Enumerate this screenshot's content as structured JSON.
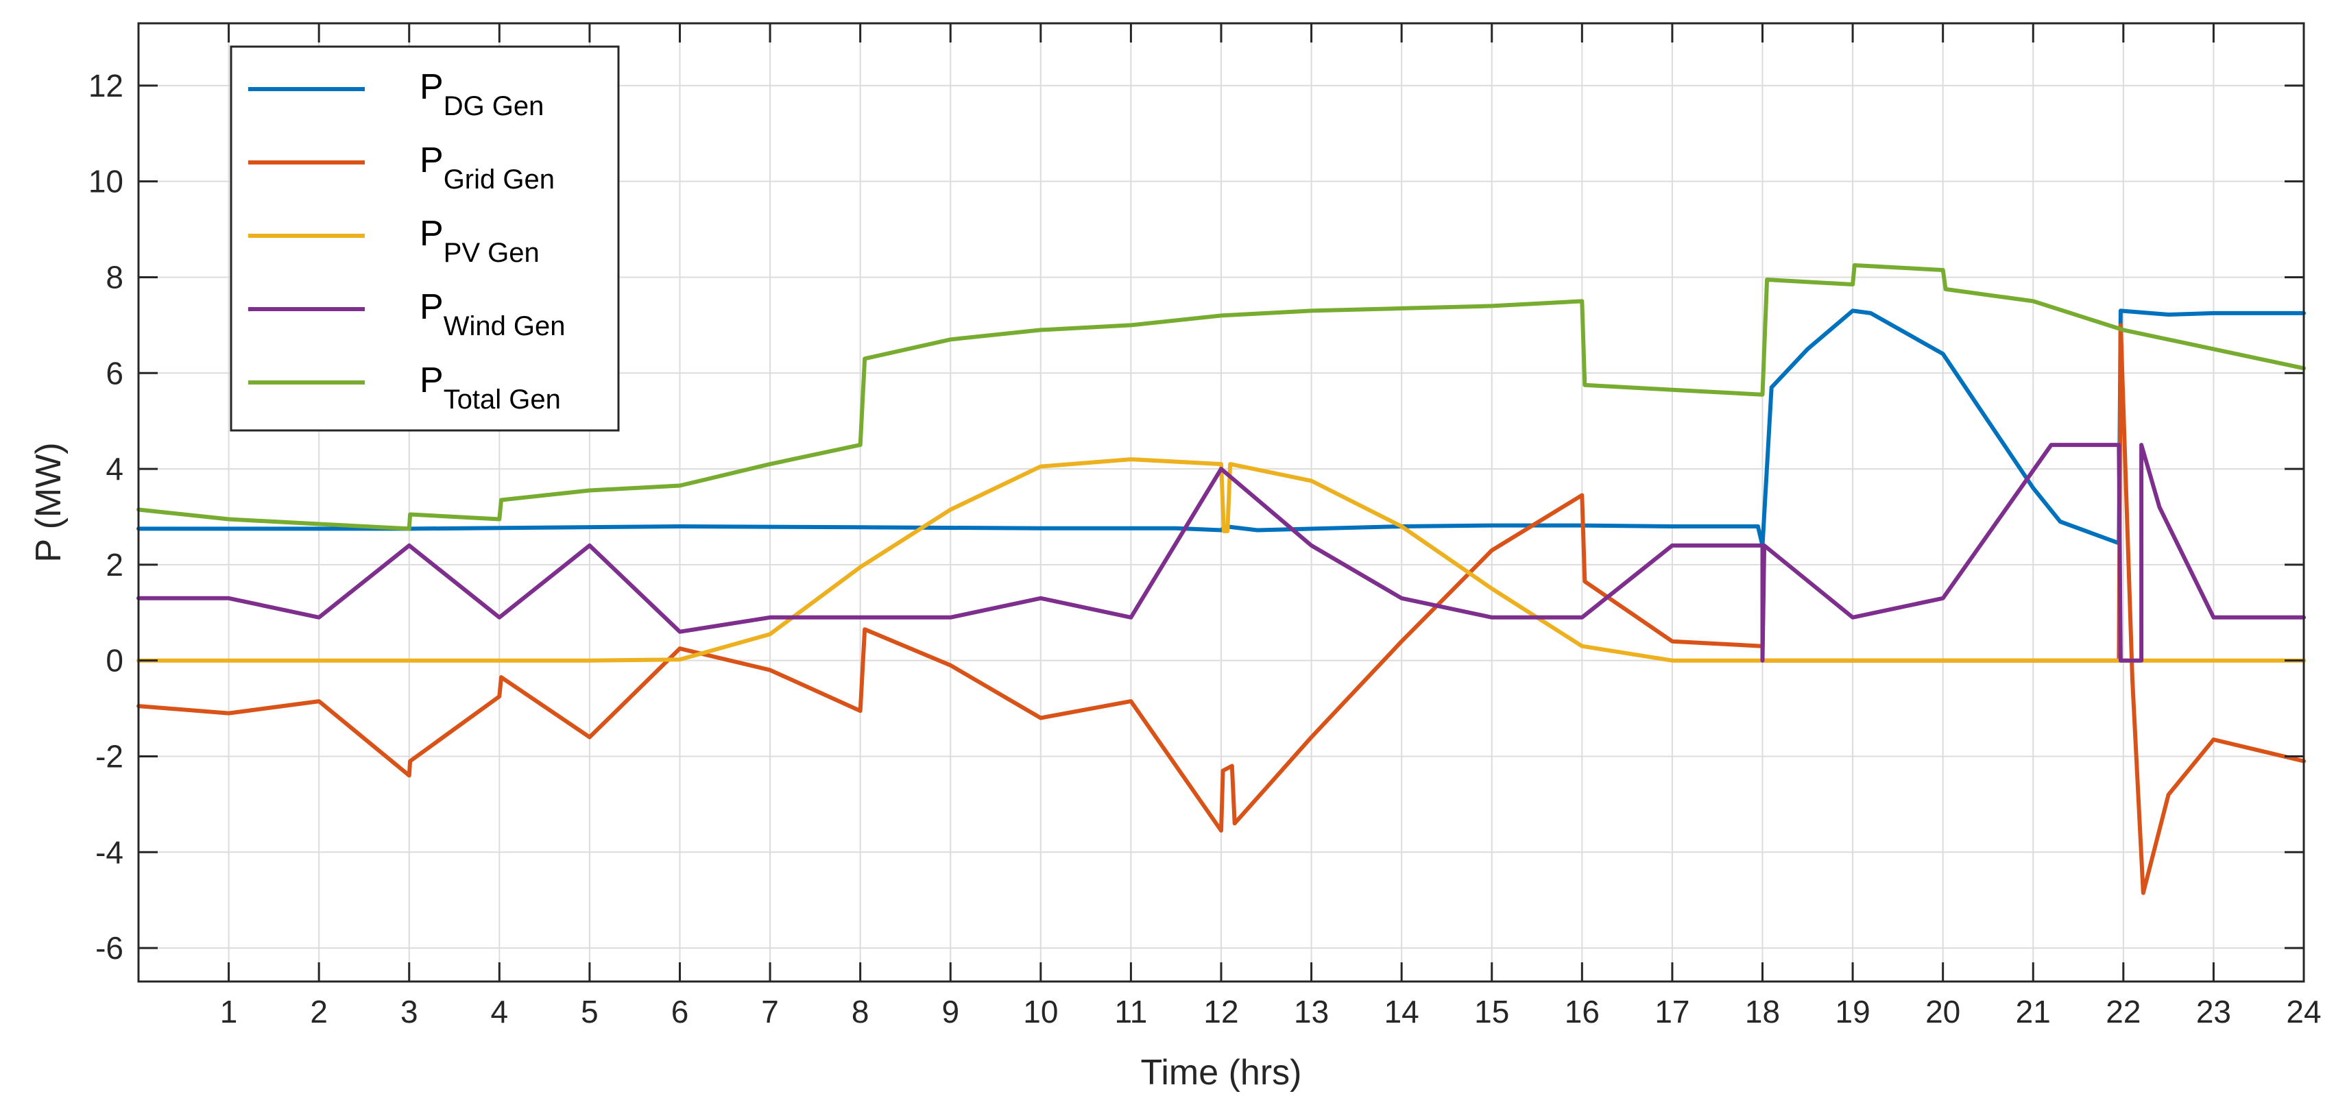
{
  "chart_data": {
    "type": "line",
    "xlabel": "Time (hrs)",
    "ylabel": "P (MW)",
    "xlim": [
      0,
      24
    ],
    "ylim": [
      -6.7,
      13.3
    ],
    "xticks": [
      1,
      2,
      3,
      4,
      5,
      6,
      7,
      8,
      9,
      10,
      11,
      12,
      13,
      14,
      15,
      16,
      17,
      18,
      19,
      20,
      21,
      22,
      23,
      24
    ],
    "yticks": [
      -6,
      -4,
      -2,
      0,
      2,
      4,
      6,
      8,
      10,
      12
    ],
    "grid": true,
    "legend_position": "top-left",
    "series": [
      {
        "legend_main": "P",
        "legend_sub": "DG Gen",
        "color": "#0072BD",
        "x": [
          0,
          3,
          6,
          8,
          10,
          11.5,
          12,
          12.05,
          12.4,
          14,
          15,
          16,
          17,
          17.95,
          18.0,
          18.1,
          18.5,
          19,
          19.2,
          20,
          20.5,
          21,
          21.3,
          21.95,
          21.97,
          22.5,
          23,
          24
        ],
        "y": [
          2.75,
          2.75,
          2.8,
          2.78,
          2.76,
          2.76,
          2.72,
          2.8,
          2.72,
          2.8,
          2.82,
          2.82,
          2.8,
          2.8,
          2.4,
          5.7,
          6.5,
          7.3,
          7.25,
          6.4,
          5.0,
          3.6,
          2.9,
          2.45,
          7.3,
          7.22,
          7.25,
          7.25
        ]
      },
      {
        "legend_main": "P",
        "legend_sub": "Grid Gen",
        "color": "#D95319",
        "x": [
          0,
          1,
          2,
          3,
          3.01,
          4,
          4.02,
          5,
          6,
          7,
          8,
          8.05,
          9,
          10,
          11,
          12,
          12.02,
          12.12,
          12.15,
          13,
          14,
          15,
          16,
          16.03,
          17,
          18,
          18.0,
          19,
          21,
          21.95,
          21.97,
          22.1,
          22.22,
          22.5,
          23,
          24
        ],
        "y": [
          -0.95,
          -1.1,
          -0.85,
          -2.4,
          -2.1,
          -0.75,
          -0.35,
          -1.6,
          0.25,
          -0.2,
          -1.05,
          0.65,
          -0.1,
          -1.2,
          -0.85,
          -3.55,
          -2.3,
          -2.2,
          -3.4,
          -1.6,
          0.4,
          2.3,
          3.45,
          1.65,
          0.4,
          0.3,
          0.0,
          0.0,
          0.0,
          0.0,
          7.0,
          -0.4,
          -4.85,
          -2.8,
          -1.65,
          -2.1
        ]
      },
      {
        "legend_main": "P",
        "legend_sub": "PV Gen",
        "color": "#EDB120",
        "x": [
          0,
          5,
          6,
          7,
          8,
          9,
          10,
          11,
          12,
          12.03,
          12.07,
          12.1,
          13,
          14,
          15,
          16,
          17,
          18,
          24
        ],
        "y": [
          0,
          0,
          0.02,
          0.55,
          1.95,
          3.15,
          4.05,
          4.2,
          4.1,
          2.7,
          2.7,
          4.1,
          3.75,
          2.8,
          1.5,
          0.3,
          0.0,
          0.0,
          0.0
        ]
      },
      {
        "legend_main": "P",
        "legend_sub": "Wind Gen",
        "color": "#7E2F8E",
        "x": [
          0,
          1,
          2,
          3,
          4,
          5,
          6,
          7,
          8,
          9,
          10,
          11,
          12,
          13,
          14,
          15,
          16,
          17,
          18,
          18.0,
          18.02,
          19,
          20,
          21.2,
          21.95,
          21.97,
          22.2,
          22.2,
          22.4,
          23,
          24
        ],
        "y": [
          1.3,
          1.3,
          0.9,
          2.4,
          0.9,
          2.4,
          0.6,
          0.9,
          0.9,
          0.9,
          1.3,
          0.9,
          4.0,
          2.4,
          1.3,
          0.9,
          0.9,
          2.4,
          2.4,
          0.0,
          2.4,
          0.9,
          1.3,
          4.5,
          4.5,
          0.0,
          0.0,
          4.5,
          3.2,
          0.9,
          0.9
        ]
      },
      {
        "legend_main": "P",
        "legend_sub": "Total Gen",
        "color": "#77AC30",
        "x": [
          0,
          1,
          2,
          3,
          3.01,
          4,
          4.02,
          5,
          6,
          7,
          8,
          8.05,
          9,
          10,
          11,
          12,
          13,
          14,
          15,
          16,
          16.03,
          17,
          18,
          18.05,
          19,
          19.02,
          20,
          20.03,
          21,
          22,
          23,
          24
        ],
        "y": [
          3.15,
          2.95,
          2.85,
          2.75,
          3.05,
          2.95,
          3.35,
          3.55,
          3.65,
          4.1,
          4.5,
          6.3,
          6.7,
          6.9,
          7.0,
          7.2,
          7.3,
          7.35,
          7.4,
          7.5,
          5.75,
          5.65,
          5.55,
          7.95,
          7.85,
          8.25,
          8.15,
          7.75,
          7.5,
          6.9,
          6.5,
          6.1
        ]
      }
    ]
  }
}
